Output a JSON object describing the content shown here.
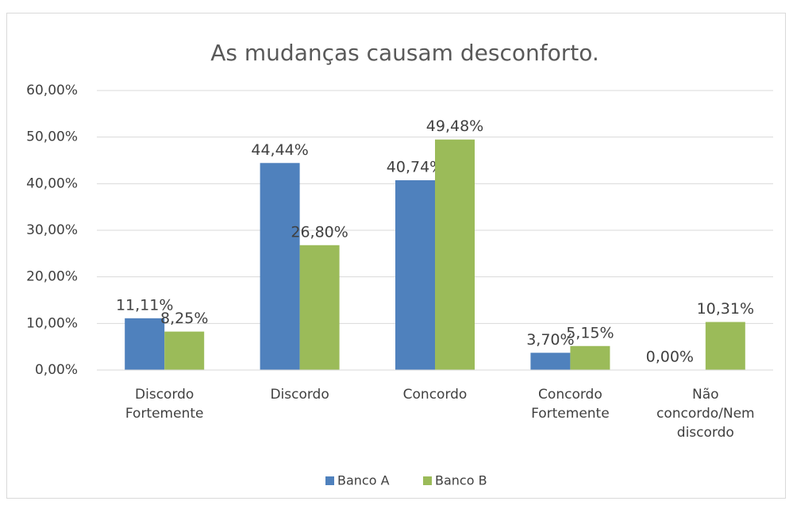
{
  "chart_data": {
    "type": "bar",
    "title": "As mudanças causam desconforto.",
    "categories": [
      "Discordo Fortemente",
      "Discordo",
      "Concordo",
      "Concordo Fortemente",
      "Não concordo/Nem discordo"
    ],
    "series": [
      {
        "name": "Banco A",
        "color": "#4f81bd",
        "values": [
          11.11,
          44.44,
          40.74,
          3.7,
          0.0
        ],
        "value_labels": [
          "11,11%",
          "44,44%",
          "40,74%",
          "3,70%",
          "0,00%"
        ]
      },
      {
        "name": "Banco B",
        "color": "#9bbb59",
        "values": [
          8.25,
          26.8,
          49.48,
          5.15,
          10.31
        ],
        "value_labels": [
          "8,25%",
          "26,80%",
          "49,48%",
          "5,15%",
          "10,31%"
        ]
      }
    ],
    "ylim": [
      0,
      60
    ],
    "yticks": [
      {
        "value": 0,
        "label": "0,00%"
      },
      {
        "value": 10,
        "label": "10,00%"
      },
      {
        "value": 20,
        "label": "20,00%"
      },
      {
        "value": 30,
        "label": "30,00%"
      },
      {
        "value": 40,
        "label": "40,00%"
      },
      {
        "value": 50,
        "label": "50,00%"
      },
      {
        "value": 60,
        "label": "60,00%"
      }
    ],
    "grid": true,
    "legend": "bottom"
  }
}
